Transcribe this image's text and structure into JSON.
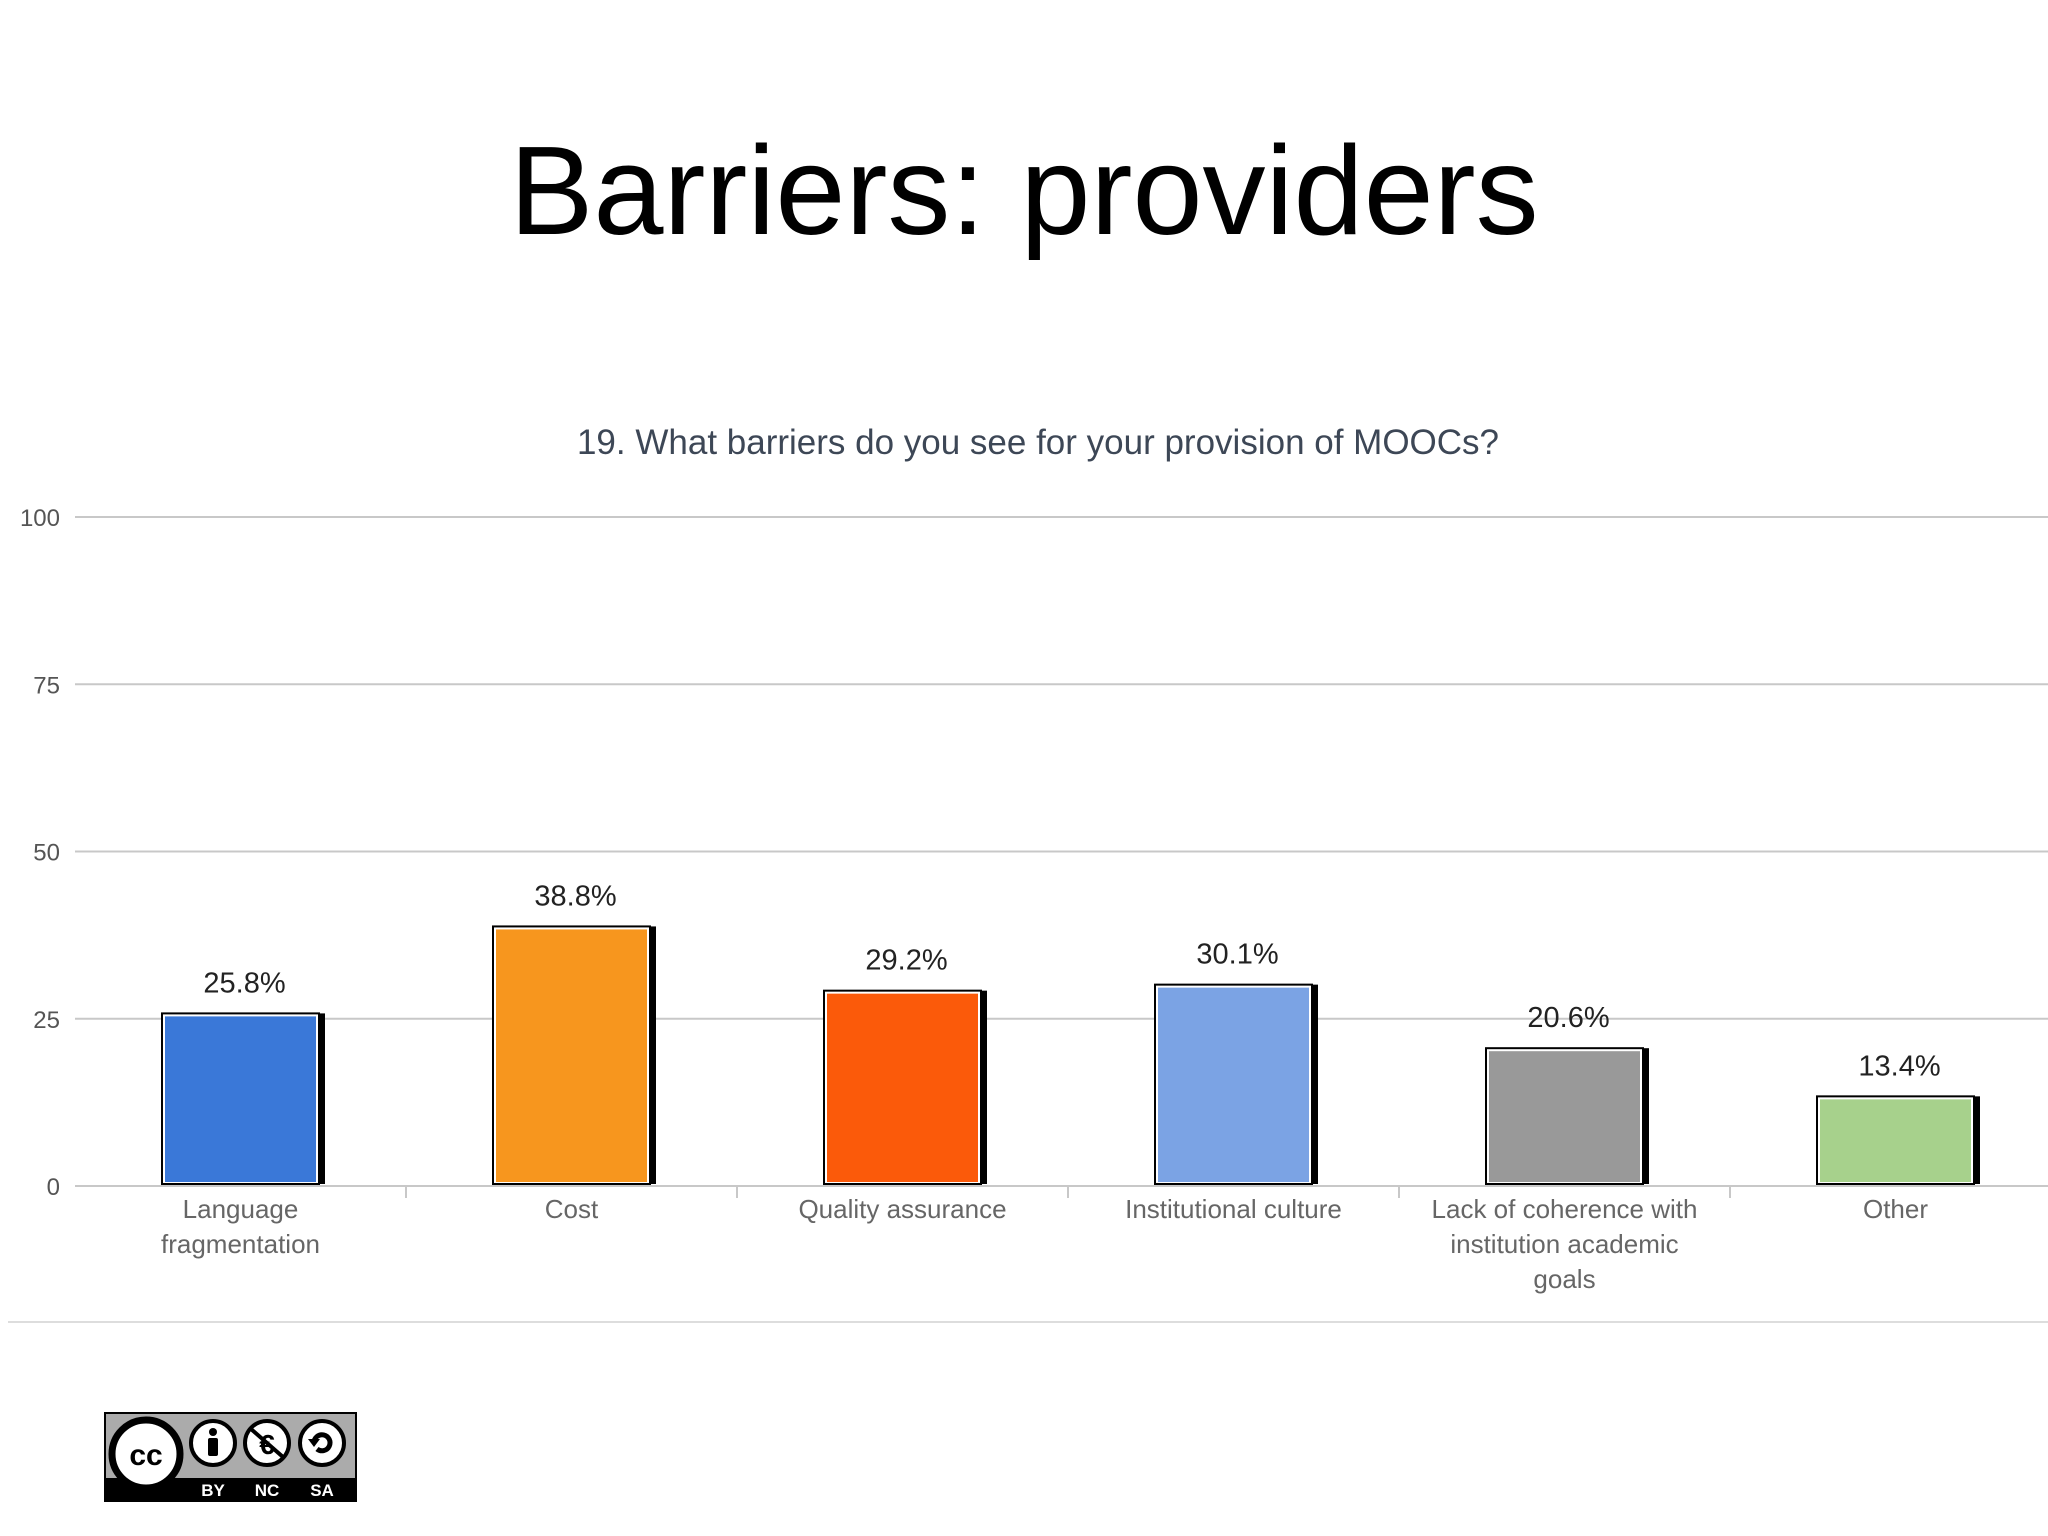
{
  "slide": {
    "title": "Barriers: providers"
  },
  "chart_data": {
    "type": "bar",
    "title": "19. What barriers do you see for your provision of MOOCs?",
    "xlabel": "",
    "ylabel": "",
    "ylim": [
      0,
      100
    ],
    "yticks": [
      0,
      25,
      50,
      75,
      100
    ],
    "grid": true,
    "legend": "none",
    "categories": [
      [
        "Language",
        "fragmentation"
      ],
      [
        "Cost"
      ],
      [
        "Quality assurance"
      ],
      [
        "Institutional culture"
      ],
      [
        "Lack of coherence with",
        "institution academic",
        "goals"
      ],
      [
        "Other"
      ]
    ],
    "values": [
      25.8,
      38.8,
      29.2,
      30.1,
      20.6,
      13.4
    ],
    "value_labels": [
      "25.8%",
      "38.8%",
      "29.2%",
      "30.1%",
      "20.6%",
      "13.4%"
    ],
    "colors": [
      "#3a78d8",
      "#f7961e",
      "#fb5a0a",
      "#7ba3e4",
      "#999999",
      "#a7d18c"
    ]
  },
  "license_badge": {
    "icons": [
      "cc-icon",
      "attribution-icon",
      "noncommercial-icon",
      "sharealike-icon"
    ],
    "labels": [
      "BY",
      "NC",
      "SA"
    ]
  }
}
